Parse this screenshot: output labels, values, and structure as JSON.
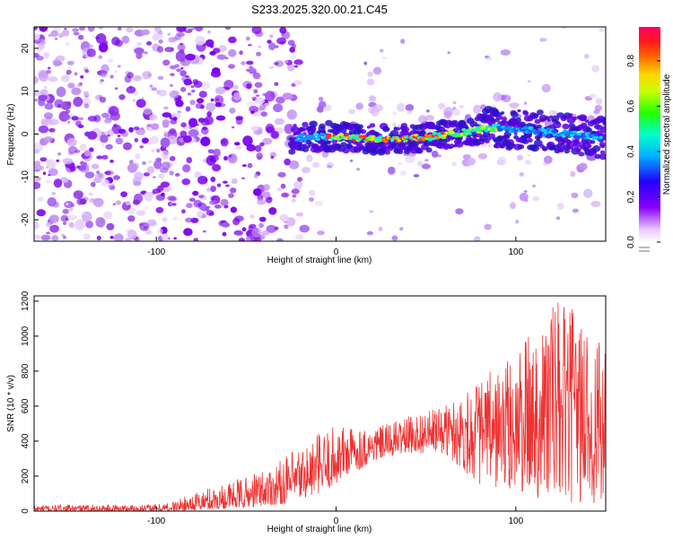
{
  "figure": {
    "title": "S233.2025.320.00.21.C45"
  },
  "chart_data": [
    {
      "id": "spectrogram",
      "type": "heatmap",
      "title": "S233.2025.320.00.21.C45",
      "xlabel": "Height of straight line (km)",
      "ylabel": "Frequency (Hz)",
      "xlim": [
        -168,
        150
      ],
      "ylim": [
        -25,
        25
      ],
      "xticks": [
        -100,
        0,
        100
      ],
      "yticks": [
        -20,
        -10,
        0,
        10,
        20
      ],
      "colorbar": {
        "label": "Normalized spectral amplitude",
        "range": [
          0,
          0.95
        ],
        "ticks": [
          0.0,
          0.2,
          0.4,
          0.6,
          0.8
        ]
      },
      "features": {
        "noise_region_km": [
          -168,
          -25
        ],
        "signal_band_km": [
          -25,
          150
        ],
        "signal_center_hz": [
          {
            "x": -25,
            "y": -1
          },
          {
            "x": 0,
            "y": -0.5
          },
          {
            "x": 25,
            "y": -1.2
          },
          {
            "x": 50,
            "y": -0.8
          },
          {
            "x": 70,
            "y": 0.3
          },
          {
            "x": 85,
            "y": 1.5
          },
          {
            "x": 100,
            "y": 1.0
          },
          {
            "x": 120,
            "y": 0.5
          },
          {
            "x": 150,
            "y": -1
          }
        ]
      }
    },
    {
      "id": "snr",
      "type": "line",
      "xlabel": "Height of straight line (km)",
      "ylabel": "SNR (10 * v/v)",
      "xlim": [
        -168,
        150
      ],
      "ylim": [
        0,
        1230
      ],
      "xticks": [
        -100,
        0,
        100
      ],
      "yticks": [
        0,
        200,
        400,
        600,
        800,
        1000,
        1200
      ],
      "series": [
        {
          "name": "SNR",
          "color": "#ee3333",
          "envelope": [
            {
              "x": -168,
              "lo": 0,
              "hi": 35
            },
            {
              "x": -100,
              "lo": 0,
              "hi": 40
            },
            {
              "x": -90,
              "lo": 0,
              "hi": 60
            },
            {
              "x": -70,
              "lo": 10,
              "hi": 140
            },
            {
              "x": -50,
              "lo": 20,
              "hi": 200
            },
            {
              "x": -30,
              "lo": 40,
              "hi": 300
            },
            {
              "x": -10,
              "lo": 100,
              "hi": 450
            },
            {
              "x": 0,
              "lo": 150,
              "hi": 500
            },
            {
              "x": 20,
              "lo": 280,
              "hi": 470
            },
            {
              "x": 40,
              "lo": 330,
              "hi": 540
            },
            {
              "x": 60,
              "lo": 330,
              "hi": 600
            },
            {
              "x": 80,
              "lo": 150,
              "hi": 760
            },
            {
              "x": 100,
              "lo": 100,
              "hi": 900
            },
            {
              "x": 120,
              "lo": 50,
              "hi": 1230
            },
            {
              "x": 140,
              "lo": 40,
              "hi": 1100
            },
            {
              "x": 150,
              "lo": 40,
              "hi": 900
            }
          ]
        }
      ]
    }
  ]
}
